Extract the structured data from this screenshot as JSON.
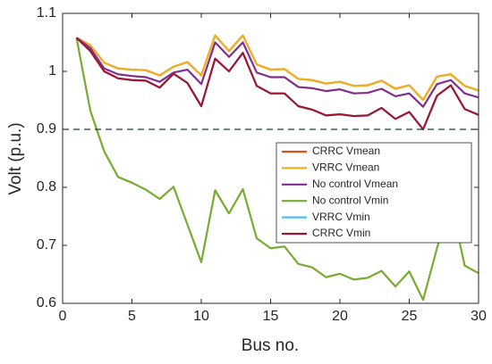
{
  "chart_data": {
    "type": "line",
    "xlabel": "Bus no.",
    "ylabel": "Volt (p.u.)",
    "x": [
      1,
      2,
      3,
      4,
      5,
      6,
      7,
      8,
      9,
      10,
      11,
      12,
      13,
      14,
      15,
      16,
      17,
      18,
      19,
      20,
      21,
      22,
      23,
      24,
      25,
      26,
      27,
      28,
      29,
      30
    ],
    "series": [
      {
        "name": "CRRC Vmean",
        "color": "#d95319",
        "values": [
          1.058,
          1.045,
          1.015,
          1.005,
          1.003,
          1.002,
          0.993,
          1.008,
          1.016,
          0.993,
          1.062,
          1.035,
          1.062,
          1.012,
          1.003,
          1.004,
          0.987,
          0.985,
          0.979,
          0.982,
          0.975,
          0.976,
          0.984,
          0.97,
          0.976,
          0.951,
          0.991,
          0.995,
          0.975,
          0.967
        ]
      },
      {
        "name": "VRRC Vmean",
        "color": "#edb120",
        "values": [
          1.058,
          1.045,
          1.015,
          1.005,
          1.003,
          1.002,
          0.993,
          1.008,
          1.016,
          0.993,
          1.062,
          1.035,
          1.062,
          1.012,
          1.003,
          1.004,
          0.987,
          0.985,
          0.979,
          0.982,
          0.975,
          0.976,
          0.984,
          0.97,
          0.976,
          0.951,
          0.991,
          0.995,
          0.975,
          0.967
        ]
      },
      {
        "name": "No control Vmean",
        "color": "#7e2f8e",
        "values": [
          1.058,
          1.04,
          1.005,
          0.995,
          0.992,
          0.99,
          0.982,
          0.998,
          1.003,
          0.978,
          1.05,
          1.025,
          1.05,
          0.998,
          0.99,
          0.99,
          0.973,
          0.971,
          0.966,
          0.969,
          0.962,
          0.963,
          0.97,
          0.957,
          0.962,
          0.939,
          0.978,
          0.985,
          0.962,
          0.955
        ]
      },
      {
        "name": "No control Vmin",
        "color": "#77ac30",
        "values": [
          1.058,
          0.932,
          0.862,
          0.818,
          0.808,
          0.796,
          0.78,
          0.801,
          0.736,
          0.671,
          0.795,
          0.755,
          0.797,
          0.712,
          0.695,
          0.698,
          0.668,
          0.662,
          0.645,
          0.651,
          0.641,
          0.644,
          0.656,
          0.629,
          0.655,
          0.606,
          0.695,
          0.775,
          0.665,
          0.652
        ]
      },
      {
        "name": "VRRC Vmin",
        "color": "#4dbeee",
        "values": [
          1.058,
          1.035,
          1.0,
          0.988,
          0.985,
          0.984,
          0.972,
          0.996,
          0.98,
          0.94,
          1.022,
          1.0,
          1.032,
          0.975,
          0.962,
          0.962,
          0.94,
          0.934,
          0.924,
          0.926,
          0.923,
          0.924,
          0.937,
          0.918,
          0.93,
          0.9,
          0.958,
          0.976,
          0.935,
          0.925
        ]
      },
      {
        "name": "CRRC Vmin",
        "color": "#a2142f",
        "values": [
          1.058,
          1.035,
          1.0,
          0.988,
          0.985,
          0.984,
          0.972,
          0.996,
          0.98,
          0.94,
          1.022,
          1.0,
          1.032,
          0.975,
          0.962,
          0.962,
          0.94,
          0.934,
          0.924,
          0.926,
          0.923,
          0.924,
          0.937,
          0.918,
          0.93,
          0.9,
          0.958,
          0.976,
          0.935,
          0.925
        ]
      }
    ],
    "reference_line": 0.9,
    "reference_color": "#1f3a3a",
    "xlim": [
      0,
      30
    ],
    "xticks": [
      0,
      5,
      10,
      15,
      20,
      25,
      30
    ],
    "ylim": [
      0.6,
      1.1
    ],
    "yticks": [
      0.6,
      0.7,
      0.8,
      0.9,
      1,
      1.1
    ],
    "legend": "right"
  }
}
